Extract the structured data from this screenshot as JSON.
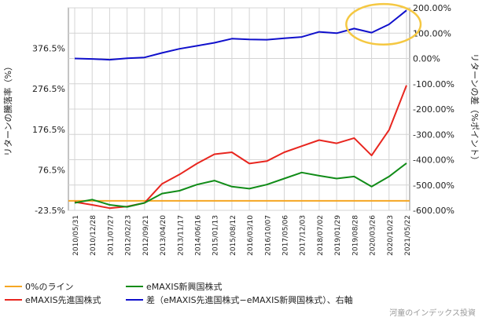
{
  "chart_data": {
    "type": "line",
    "left_axis": {
      "label": "リターンの騰落率（%）",
      "ticks": [
        "-23.5%",
        "76.5%",
        "176.5%",
        "276.5%",
        "376.5%"
      ],
      "tick_values": [
        -23.5,
        76.5,
        176.5,
        276.5,
        376.5
      ],
      "range": [
        -23.5,
        476.5
      ]
    },
    "right_axis": {
      "label": "リターンの差（%ポイント）",
      "ticks": [
        "-600.00%",
        "-500.00%",
        "-400.00%",
        "-300.00%",
        "-200.00%",
        "-100.00%",
        "0.00%",
        "100.00%",
        "200.00%"
      ],
      "tick_values": [
        -600,
        -500,
        -400,
        -300,
        -200,
        -100,
        0,
        100,
        200
      ],
      "range": [
        -600,
        200
      ]
    },
    "x_ticks": [
      "2010/05/31",
      "2010/12/28",
      "2011/07/27",
      "2012/02/23",
      "2012/09/21",
      "2013/04/20",
      "2013/11/17",
      "2014/06/16",
      "2015/01/13",
      "2015/08/12",
      "2016/03/10",
      "2016/10/07",
      "2017/05/06",
      "2017/12/03",
      "2018/07/02",
      "2019/01/29",
      "2019/08/28",
      "2020/03/26",
      "2020/10/23",
      "2021/05/22"
    ],
    "grid": true,
    "series": [
      {
        "name": "0%のライン",
        "color": "#f5a623",
        "axis": "left",
        "x": [
          "2010/05/31",
          "2021/05/22"
        ],
        "values": [
          0,
          0
        ]
      },
      {
        "name": "eMAXIS先進国株式",
        "color": "#e8261f",
        "axis": "left",
        "x": [
          "2010/05/31",
          "2010/12/28",
          "2011/07/27",
          "2012/02/23",
          "2012/09/21",
          "2013/04/20",
          "2013/11/17",
          "2014/06/16",
          "2015/01/13",
          "2015/08/12",
          "2016/03/10",
          "2016/10/07",
          "2017/05/06",
          "2017/12/03",
          "2018/07/02",
          "2019/01/29",
          "2019/08/28",
          "2020/03/26",
          "2020/10/23",
          "2021/05/22"
        ],
        "values": [
          -3,
          -10,
          -18,
          -14,
          -5,
          42,
          65,
          92,
          115,
          120,
          92,
          98,
          120,
          135,
          150,
          142,
          155,
          112,
          175,
          285
        ]
      },
      {
        "name": "eMAXIS新興国株式",
        "color": "#118c18",
        "axis": "left",
        "x": [
          "2010/05/31",
          "2010/12/28",
          "2011/07/27",
          "2012/02/23",
          "2012/09/21",
          "2013/04/20",
          "2013/11/17",
          "2014/06/16",
          "2015/01/13",
          "2015/08/12",
          "2016/03/10",
          "2016/10/07",
          "2017/05/06",
          "2017/12/03",
          "2018/07/02",
          "2019/01/29",
          "2019/08/28",
          "2020/03/26",
          "2020/10/23",
          "2021/05/22"
        ],
        "values": [
          -5,
          3,
          -10,
          -15,
          -5,
          18,
          25,
          40,
          50,
          35,
          30,
          40,
          55,
          70,
          62,
          55,
          60,
          35,
          60,
          93
        ]
      },
      {
        "name": "差（eMAXIS先進国株式−eMAXIS新興国株式）、右軸",
        "color": "#1010cc",
        "axis": "right",
        "x": [
          "2010/05/31",
          "2010/12/28",
          "2011/07/27",
          "2012/02/23",
          "2012/09/21",
          "2013/04/20",
          "2013/11/17",
          "2014/06/16",
          "2015/01/13",
          "2015/08/12",
          "2016/03/10",
          "2016/10/07",
          "2017/05/06",
          "2017/12/03",
          "2018/07/02",
          "2019/01/29",
          "2019/08/28",
          "2020/03/26",
          "2020/10/23",
          "2021/05/22"
        ],
        "values": [
          0,
          -2,
          -5,
          1,
          4,
          22,
          38,
          50,
          62,
          78,
          75,
          74,
          80,
          85,
          105,
          100,
          118,
          102,
          135,
          190
        ]
      }
    ],
    "annotations": [
      {
        "type": "ellipse",
        "color": "#f5c842",
        "x_range": [
          "2019/08/28",
          "2021/05/22"
        ],
        "y_range_right": [
          55,
          215
        ]
      }
    ],
    "legend": {
      "placement": "bottom"
    }
  },
  "watermark": "河童のインデックス投資"
}
